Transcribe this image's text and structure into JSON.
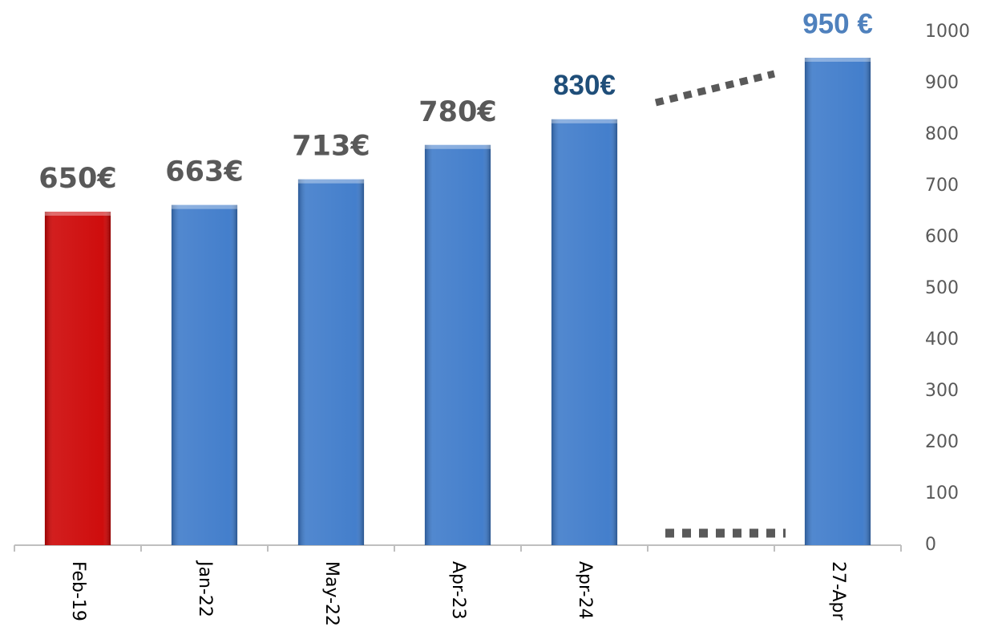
{
  "chart_data": {
    "type": "bar",
    "categories": [
      "Feb-19",
      "Jan-22",
      "May-22",
      "Apr-23",
      "Apr-24",
      null,
      "27-Apr"
    ],
    "values": [
      650,
      663,
      713,
      780,
      830,
      null,
      950
    ],
    "value_labels": [
      "650€",
      "663€",
      "713€",
      "780€",
      "830€",
      null,
      "950 €"
    ],
    "colors": [
      "#cc0000",
      "#3a78c9",
      "#3a78c9",
      "#3a78c9",
      "#3a78c9",
      "#3a78c9",
      "#3a78c9"
    ],
    "value_label_colors": [
      "#595959",
      "#595959",
      "#595959",
      "#595959",
      "#1f4e79",
      "#595959",
      "#4f81bd"
    ],
    "ylim": [
      0,
      1000
    ],
    "yticks": [
      0,
      100,
      200,
      300,
      400,
      500,
      600,
      700,
      800,
      900,
      1000
    ],
    "y_axis_side": "right",
    "grid": false
  }
}
